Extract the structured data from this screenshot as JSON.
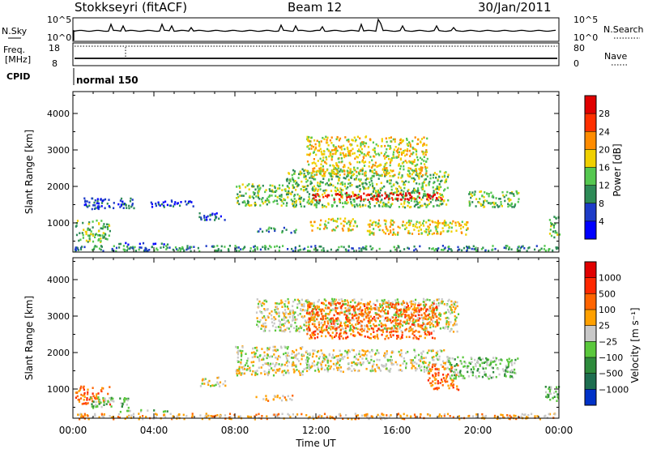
{
  "header": {
    "station": "Stokkseyri (fitACF)",
    "beam": "Beam 12",
    "date": "30/Jan/2011"
  },
  "summary": {
    "nsky_label": "N.Sky",
    "nsky_ticks": [
      "10^5",
      "10^0"
    ],
    "nsearch_label": "N.Search",
    "nsearch_ticks": [
      "10^5",
      "10^0"
    ],
    "freq_label": "Freq.",
    "freq_unit": "[MHz]",
    "freq_ticks": [
      "18",
      "8"
    ],
    "nave_label": "Nave",
    "nave_ticks": [
      "80",
      "0"
    ],
    "cpid_label": "CPID",
    "cpid_text": "normal 150"
  },
  "chart_data": [
    {
      "type": "heatmap",
      "name": "power-panel",
      "ylabel": "Slant Range [km]",
      "yticks": [
        "1000",
        "2000",
        "3000",
        "4000"
      ],
      "yrange_km": [
        200,
        4600
      ],
      "xrange_hours": [
        0,
        24
      ],
      "colorbar": {
        "label": "Power [dB]",
        "ticks": [
          "4",
          "8",
          "12",
          "16",
          "20",
          "24",
          "28"
        ],
        "range": [
          0,
          32
        ],
        "colors": [
          "#0000ff",
          "#1e3cc8",
          "#2e8b57",
          "#55c850",
          "#f0d000",
          "#ff8c00",
          "#ff3000",
          "#e00000"
        ]
      },
      "echoes": [
        {
          "t0": 0.1,
          "t1": 1.8,
          "r0": 500,
          "r1": 1100,
          "level": 3
        },
        {
          "t0": 2.0,
          "t1": 5.0,
          "r0": 420,
          "r1": 480,
          "level": 1
        },
        {
          "t0": 0.5,
          "t1": 3.0,
          "r0": 1400,
          "r1": 1700,
          "level": 1
        },
        {
          "t0": 3.8,
          "t1": 6.0,
          "r0": 1450,
          "r1": 1650,
          "level": 1
        },
        {
          "t0": 6.2,
          "t1": 7.5,
          "r0": 1100,
          "r1": 1300,
          "level": 1
        },
        {
          "t0": 8.0,
          "t1": 10.5,
          "r0": 1500,
          "r1": 2100,
          "level": 3
        },
        {
          "t0": 9.0,
          "t1": 11.0,
          "r0": 750,
          "r1": 900,
          "level": 2
        },
        {
          "t0": 10.5,
          "t1": 18.5,
          "r0": 1450,
          "r1": 2500,
          "level": 3
        },
        {
          "t0": 11.8,
          "t1": 18.2,
          "r0": 1650,
          "r1": 1850,
          "level": 7
        },
        {
          "t0": 11.5,
          "t1": 17.5,
          "r0": 2300,
          "r1": 3400,
          "level": 4
        },
        {
          "t0": 11.7,
          "t1": 14.0,
          "r0": 800,
          "r1": 1150,
          "level": 4
        },
        {
          "t0": 14.5,
          "t1": 19.5,
          "r0": 700,
          "r1": 1100,
          "level": 4
        },
        {
          "t0": 19.5,
          "t1": 22.0,
          "r0": 1450,
          "r1": 1900,
          "level": 3
        },
        {
          "t0": 23.5,
          "t1": 24.0,
          "r0": 600,
          "r1": 1200,
          "level": 3
        },
        {
          "t0": 0.0,
          "t1": 24.0,
          "r0": 250,
          "r1": 400,
          "level": 2
        }
      ]
    },
    {
      "type": "heatmap",
      "name": "velocity-panel",
      "ylabel": "Slant Range [km]",
      "yticks": [
        "1000",
        "2000",
        "3000",
        "4000"
      ],
      "yrange_km": [
        200,
        4600
      ],
      "xrange_hours": [
        0,
        24
      ],
      "colorbar": {
        "label": "Velocity [m s⁻¹]",
        "ticks": [
          "1000",
          "500",
          "100",
          "25",
          "−25",
          "−100",
          "−500",
          "−1000"
        ],
        "colors": [
          "#0032c8",
          "#1e6e50",
          "#2e8b3c",
          "#5ac83c",
          "#c8c8c8",
          "#ffa000",
          "#ff6400",
          "#ff2800",
          "#e00000"
        ]
      },
      "echoes": [
        {
          "t0": 0.1,
          "t1": 1.8,
          "r0": 600,
          "r1": 1100,
          "level": 6
        },
        {
          "t0": 0.8,
          "t1": 2.8,
          "r0": 500,
          "r1": 800,
          "level": 3
        },
        {
          "t0": 2.0,
          "t1": 5.0,
          "r0": 400,
          "r1": 450,
          "level": 3
        },
        {
          "t0": 0.0,
          "t1": 24.0,
          "r0": 200,
          "r1": 350,
          "level": 5
        },
        {
          "t0": 6.2,
          "t1": 7.5,
          "r0": 1100,
          "r1": 1350,
          "level": 4
        },
        {
          "t0": 8.0,
          "t1": 11.5,
          "r0": 1400,
          "r1": 2200,
          "level": 4
        },
        {
          "t0": 9.0,
          "t1": 11.0,
          "r0": 700,
          "r1": 850,
          "level": 5
        },
        {
          "t0": 9.0,
          "t1": 19.0,
          "r0": 2600,
          "r1": 3500,
          "level": 4
        },
        {
          "t0": 11.5,
          "t1": 18.0,
          "r0": 2400,
          "r1": 3400,
          "level": 6
        },
        {
          "t0": 11.5,
          "t1": 18.5,
          "r0": 1500,
          "r1": 2100,
          "level": 4
        },
        {
          "t0": 17.5,
          "t1": 19.0,
          "r0": 1000,
          "r1": 1700,
          "level": 6
        },
        {
          "t0": 18.5,
          "t1": 22.0,
          "r0": 1300,
          "r1": 1900,
          "level": 3
        },
        {
          "t0": 23.3,
          "t1": 24.0,
          "r0": 700,
          "r1": 1100,
          "level": 3
        }
      ]
    }
  ],
  "xaxis": {
    "label": "Time UT",
    "ticks": [
      "00:00",
      "04:00",
      "08:00",
      "12:00",
      "16:00",
      "20:00",
      "00:00"
    ]
  }
}
